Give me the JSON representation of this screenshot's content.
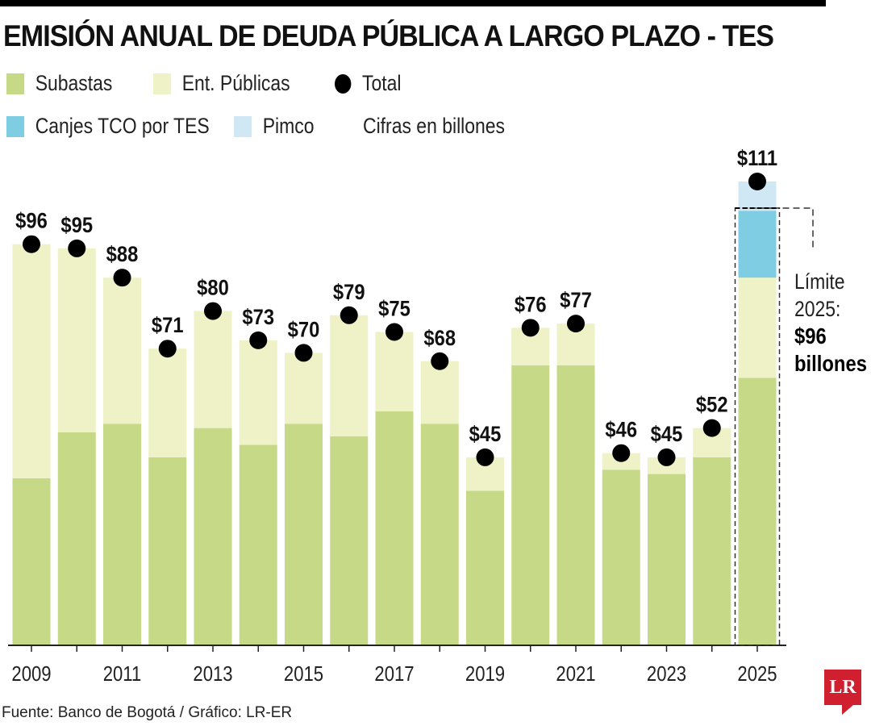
{
  "title": "EMISIÓN ANUAL DE DEUDA PÚBLICA A LARGO PLAZO - TES",
  "legend": {
    "subastas": "Subastas",
    "ent_publicas": "Ent. Públicas",
    "total": "Total",
    "canjes": "Canjes TCO por TES",
    "pimco": "Pimco",
    "units": "Cifras en billones"
  },
  "annotation": {
    "line1": "Límite",
    "line2": "2025:",
    "line3": "$96",
    "line4": "billones"
  },
  "source": "Fuente: Banco de Bogotá / Gráfico: LR-ER",
  "logo": "LR",
  "colors": {
    "subastas": "#c5d986",
    "ent_publicas": "#eef2c6",
    "canjes": "#7ecde3",
    "pimco": "#cfe8f3",
    "total": "#000000",
    "logo": "#d01f2e"
  },
  "chart_data": {
    "type": "bar",
    "stacked": true,
    "categories": [
      "2009",
      "2010",
      "2011",
      "2012",
      "2013",
      "2014",
      "2015",
      "2016",
      "2017",
      "2018",
      "2019",
      "2020",
      "2021",
      "2022",
      "2023",
      "2024",
      "2025"
    ],
    "x_tick_labels": [
      "2009",
      "2011",
      "2013",
      "2015",
      "2017",
      "2019",
      "2021",
      "2023",
      "2025"
    ],
    "series": [
      {
        "name": "Subastas",
        "values": [
          40,
          51,
          53,
          45,
          52,
          48,
          53,
          50,
          56,
          53,
          37,
          67,
          67,
          42,
          41,
          45,
          64
        ]
      },
      {
        "name": "Ent. Públicas",
        "values": [
          56,
          44,
          35,
          26,
          28,
          25,
          17,
          29,
          19,
          15,
          8,
          9,
          10,
          4,
          4,
          7,
          24
        ]
      },
      {
        "name": "Canjes TCO por TES",
        "values": [
          0,
          0,
          0,
          0,
          0,
          0,
          0,
          0,
          0,
          0,
          0,
          0,
          0,
          0,
          0,
          0,
          16
        ]
      },
      {
        "name": "Pimco",
        "values": [
          0,
          0,
          0,
          0,
          0,
          0,
          0,
          0,
          0,
          0,
          0,
          0,
          0,
          0,
          0,
          0,
          7
        ]
      }
    ],
    "totals": {
      "name": "Total",
      "values": [
        96,
        95,
        88,
        71,
        80,
        73,
        70,
        79,
        75,
        68,
        45,
        76,
        77,
        46,
        45,
        52,
        111
      ]
    },
    "total_labels": [
      "$96",
      "$95",
      "$88",
      "$71",
      "$80",
      "$73",
      "$70",
      "$79",
      "$75",
      "$68",
      "$45",
      "$76",
      "$77",
      "$46",
      "$45",
      "$52",
      "$111"
    ],
    "limit_2025": 96,
    "ylim": [
      0,
      115
    ],
    "grid": false
  }
}
